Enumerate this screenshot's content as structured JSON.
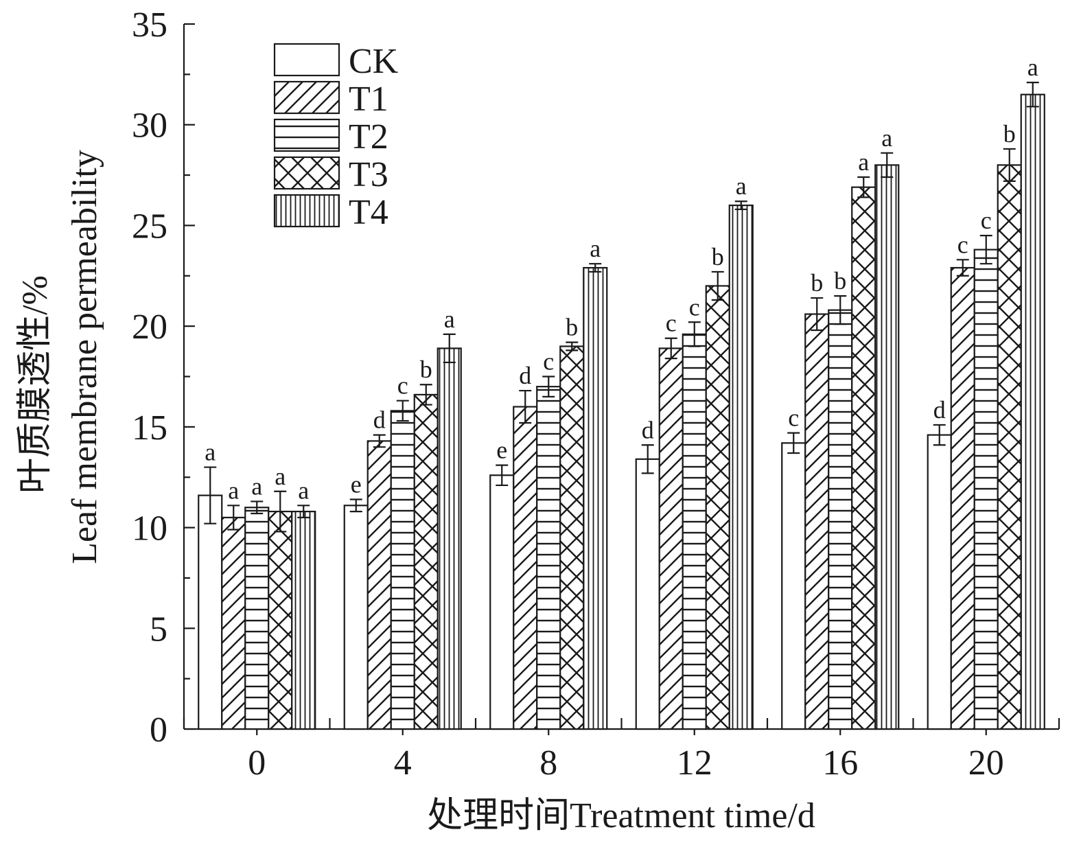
{
  "chart_data": {
    "type": "bar",
    "categories": [
      "0",
      "4",
      "8",
      "12",
      "16",
      "20"
    ],
    "series": [
      {
        "name": "CK",
        "pattern": "none",
        "values": [
          11.6,
          11.1,
          12.6,
          13.4,
          14.2,
          14.6
        ],
        "errors": [
          1.4,
          0.3,
          0.5,
          0.7,
          0.5,
          0.5
        ],
        "letters": [
          "a",
          "e",
          "e",
          "d",
          "c",
          "d"
        ]
      },
      {
        "name": "T1",
        "pattern": "diagonal",
        "values": [
          10.5,
          14.3,
          16.0,
          18.9,
          20.6,
          22.9
        ],
        "errors": [
          0.6,
          0.3,
          0.8,
          0.5,
          0.8,
          0.4
        ],
        "letters": [
          "a",
          "d",
          "d",
          "c",
          "b",
          "c"
        ]
      },
      {
        "name": "T2",
        "pattern": "horizontal",
        "values": [
          11.0,
          15.8,
          17.0,
          19.6,
          20.8,
          23.8
        ],
        "errors": [
          0.3,
          0.5,
          0.5,
          0.6,
          0.7,
          0.7
        ],
        "letters": [
          "a",
          "c",
          "c",
          "c",
          "b",
          "c"
        ]
      },
      {
        "name": "T3",
        "pattern": "crosshatch",
        "values": [
          10.8,
          16.6,
          19.0,
          22.0,
          26.9,
          28.0
        ],
        "errors": [
          1.0,
          0.5,
          0.2,
          0.7,
          0.5,
          0.8
        ],
        "letters": [
          "a",
          "b",
          "b",
          "b",
          "a",
          "b"
        ]
      },
      {
        "name": "T4",
        "pattern": "vertical",
        "values": [
          10.8,
          18.9,
          22.9,
          26.0,
          28.0,
          31.5
        ],
        "errors": [
          0.3,
          0.7,
          0.2,
          0.2,
          0.6,
          0.6
        ],
        "letters": [
          "a",
          "a",
          "a",
          "a",
          "a",
          "a"
        ]
      }
    ],
    "xlabel": "处理时间Treatment time/d",
    "ylabel": "叶质膜透性/% Leaf membrane permeability",
    "ylabel_cn": "叶质膜透性/%",
    "ylabel_en": "Leaf membrane permeability",
    "ylim": [
      0,
      35
    ],
    "yticks": [
      0,
      5,
      10,
      15,
      20,
      25,
      30,
      35
    ],
    "legend_position": "top-left",
    "grid": false
  },
  "colors": {
    "ink": "#1a1a1a",
    "bar_fill": "#ffffff"
  }
}
